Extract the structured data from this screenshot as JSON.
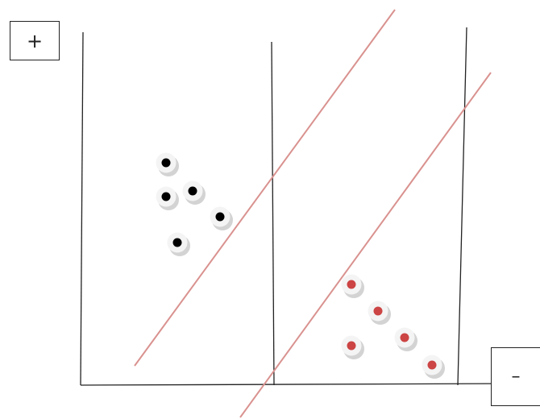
{
  "labels": {
    "positive": "+",
    "negative": "–"
  },
  "colors": {
    "axis": "#222222",
    "margin_line": "#d9928f",
    "point_shadow": "#d3d3d3",
    "point_face": "#f4f4f4",
    "positive_dot": "#000000",
    "negative_dot": "#cc4444"
  },
  "points": {
    "positive_count": 5,
    "negative_count": 5
  }
}
